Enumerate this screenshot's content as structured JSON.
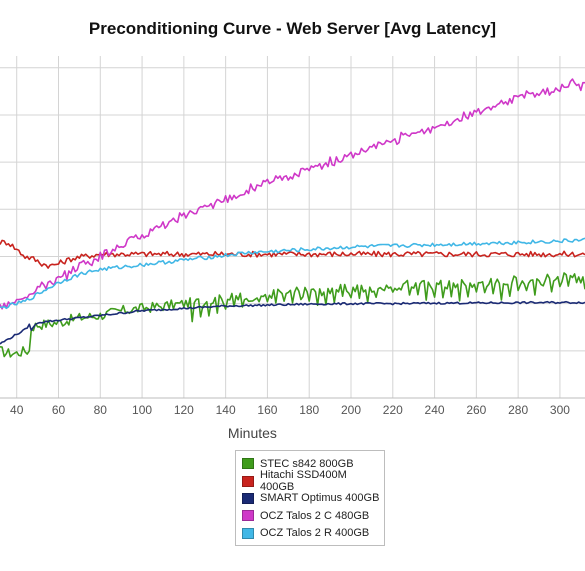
{
  "chart_data": {
    "type": "line",
    "title": "Preconditioning Curve - Web Server [Avg Latency]",
    "xlabel": "Minutes",
    "ylabel": "",
    "xlim": [
      32,
      312
    ],
    "ylim": [
      0,
      14.5
    ],
    "x_ticks": [
      40,
      60,
      80,
      100,
      120,
      140,
      160,
      180,
      200,
      220,
      240,
      260,
      280,
      300
    ],
    "y_gridlines": [
      2,
      4,
      6,
      8,
      10,
      12,
      14
    ],
    "grid": true,
    "legend_position": "bottom-center",
    "series": [
      {
        "name": "STEC s842 800GB",
        "color": "#3f9c1c",
        "points": [
          [
            32,
            2.0
          ],
          [
            36,
            1.9
          ],
          [
            40,
            1.9
          ],
          [
            44,
            2.0
          ],
          [
            46,
            2.0
          ],
          [
            47,
            3.0
          ],
          [
            50,
            3.1
          ],
          [
            60,
            3.2
          ],
          [
            70,
            3.4
          ],
          [
            80,
            3.5
          ],
          [
            90,
            3.7
          ],
          [
            100,
            3.8
          ],
          [
            110,
            3.9
          ],
          [
            120,
            4.0
          ],
          [
            130,
            4.1
          ],
          [
            140,
            4.2
          ],
          [
            150,
            4.3
          ],
          [
            160,
            4.4
          ],
          [
            170,
            4.5
          ],
          [
            180,
            4.5
          ],
          [
            190,
            4.6
          ],
          [
            200,
            4.6
          ],
          [
            210,
            4.7
          ],
          [
            220,
            4.7
          ],
          [
            230,
            4.8
          ],
          [
            240,
            4.8
          ],
          [
            250,
            4.8
          ],
          [
            260,
            4.9
          ],
          [
            270,
            4.9
          ],
          [
            280,
            5.0
          ],
          [
            290,
            5.0
          ],
          [
            300,
            5.1
          ],
          [
            312,
            5.1
          ]
        ]
      },
      {
        "name": "Hitachi SSD400M 400GB",
        "color": "#c8231e",
        "points": [
          [
            32,
            6.6
          ],
          [
            36,
            6.6
          ],
          [
            40,
            6.3
          ],
          [
            44,
            6.0
          ],
          [
            48,
            5.9
          ],
          [
            52,
            5.7
          ],
          [
            56,
            5.6
          ],
          [
            60,
            5.7
          ],
          [
            66,
            5.9
          ],
          [
            72,
            6.0
          ],
          [
            80,
            6.1
          ],
          [
            90,
            6.1
          ],
          [
            100,
            6.1
          ],
          [
            120,
            6.1
          ],
          [
            140,
            6.1
          ],
          [
            160,
            6.1
          ],
          [
            180,
            6.1
          ],
          [
            200,
            6.1
          ],
          [
            220,
            6.1
          ],
          [
            240,
            6.1
          ],
          [
            260,
            6.1
          ],
          [
            280,
            6.1
          ],
          [
            300,
            6.1
          ],
          [
            312,
            6.1
          ]
        ]
      },
      {
        "name": "SMART Optimus 400GB",
        "color": "#1a2a74",
        "points": [
          [
            32,
            2.3
          ],
          [
            36,
            2.5
          ],
          [
            40,
            2.7
          ],
          [
            44,
            2.9
          ],
          [
            46,
            3.1
          ],
          [
            47,
            2.9
          ],
          [
            50,
            3.2
          ],
          [
            60,
            3.3
          ],
          [
            70,
            3.4
          ],
          [
            80,
            3.5
          ],
          [
            90,
            3.6
          ],
          [
            100,
            3.7
          ],
          [
            110,
            3.75
          ],
          [
            120,
            3.8
          ],
          [
            130,
            3.85
          ],
          [
            140,
            3.9
          ],
          [
            150,
            3.92
          ],
          [
            160,
            3.94
          ],
          [
            170,
            3.96
          ],
          [
            180,
            3.98
          ],
          [
            200,
            4.0
          ],
          [
            220,
            4.0
          ],
          [
            240,
            4.02
          ],
          [
            260,
            4.03
          ],
          [
            280,
            4.04
          ],
          [
            300,
            4.05
          ],
          [
            312,
            4.05
          ]
        ]
      },
      {
        "name": "OCZ Talos 2 C 480GB",
        "color": "#cf38c8",
        "points": [
          [
            32,
            3.9
          ],
          [
            36,
            4.0
          ],
          [
            40,
            4.1
          ],
          [
            44,
            4.3
          ],
          [
            48,
            4.5
          ],
          [
            52,
            4.7
          ],
          [
            56,
            4.9
          ],
          [
            60,
            5.1
          ],
          [
            66,
            5.4
          ],
          [
            72,
            5.7
          ],
          [
            80,
            6.0
          ],
          [
            90,
            6.5
          ],
          [
            100,
            6.9
          ],
          [
            110,
            7.3
          ],
          [
            120,
            7.7
          ],
          [
            130,
            8.1
          ],
          [
            140,
            8.4
          ],
          [
            150,
            8.8
          ],
          [
            160,
            9.1
          ],
          [
            170,
            9.4
          ],
          [
            180,
            9.7
          ],
          [
            190,
            10.0
          ],
          [
            200,
            10.3
          ],
          [
            210,
            10.6
          ],
          [
            220,
            10.9
          ],
          [
            230,
            11.2
          ],
          [
            240,
            11.5
          ],
          [
            250,
            11.8
          ],
          [
            260,
            12.1
          ],
          [
            270,
            12.4
          ],
          [
            280,
            12.7
          ],
          [
            290,
            12.9
          ],
          [
            300,
            13.1
          ],
          [
            305,
            13.4
          ],
          [
            312,
            13.2
          ]
        ]
      },
      {
        "name": "OCZ Talos 2 R 400GB",
        "color": "#41b7e6",
        "points": [
          [
            32,
            3.8
          ],
          [
            36,
            3.9
          ],
          [
            40,
            4.0
          ],
          [
            44,
            4.1
          ],
          [
            48,
            4.3
          ],
          [
            52,
            4.5
          ],
          [
            56,
            4.7
          ],
          [
            60,
            4.9
          ],
          [
            66,
            5.1
          ],
          [
            72,
            5.3
          ],
          [
            80,
            5.45
          ],
          [
            90,
            5.55
          ],
          [
            100,
            5.65
          ],
          [
            110,
            5.75
          ],
          [
            120,
            5.85
          ],
          [
            130,
            5.95
          ],
          [
            140,
            6.05
          ],
          [
            150,
            6.15
          ],
          [
            160,
            6.2
          ],
          [
            170,
            6.25
          ],
          [
            180,
            6.3
          ],
          [
            190,
            6.35
          ],
          [
            200,
            6.4
          ],
          [
            220,
            6.45
          ],
          [
            240,
            6.5
          ],
          [
            260,
            6.55
          ],
          [
            280,
            6.6
          ],
          [
            300,
            6.65
          ],
          [
            312,
            6.7
          ]
        ]
      }
    ]
  }
}
